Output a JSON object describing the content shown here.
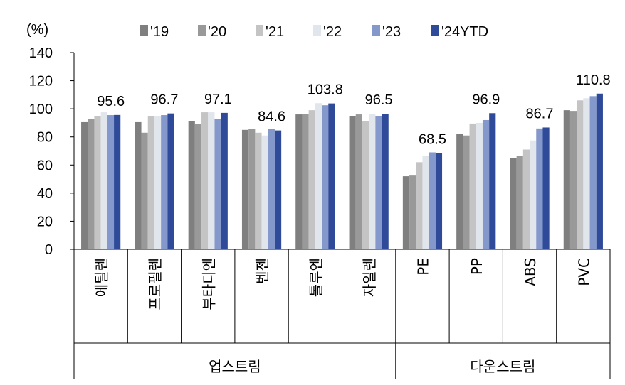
{
  "chart_data": {
    "type": "bar",
    "unit_label": "(%)",
    "ylim": [
      0,
      140
    ],
    "yticks": [
      0,
      20,
      40,
      60,
      80,
      100,
      120,
      140
    ],
    "legend_position": "top",
    "categories": [
      "에틸렌",
      "프로필렌",
      "부타디엔",
      "벤젠",
      "톨루엔",
      "자일렌",
      "PE",
      "PP",
      "ABS",
      "PVC"
    ],
    "groups": [
      {
        "label": "업스트림",
        "categories": [
          "에틸렌",
          "프로필렌",
          "부타디엔",
          "벤젠",
          "톨루엔",
          "자일렌"
        ]
      },
      {
        "label": "다운스트림",
        "categories": [
          "PE",
          "PP",
          "ABS",
          "PVC"
        ]
      }
    ],
    "series": [
      {
        "name": "'19",
        "color": "#7f7f7f",
        "values": [
          90.5,
          90.5,
          91,
          85,
          96,
          95,
          52,
          82,
          65,
          99
        ]
      },
      {
        "name": "'20",
        "color": "#999999",
        "values": [
          92.5,
          83,
          89,
          85.5,
          96.5,
          96,
          52.5,
          81,
          66.5,
          98.5
        ]
      },
      {
        "name": "'21",
        "color": "#c4c4c4",
        "values": [
          95,
          94.5,
          97.5,
          83,
          99,
          91,
          62,
          89.5,
          71,
          106
        ]
      },
      {
        "name": "'22",
        "color": "#e1e5ec",
        "values": [
          97.5,
          95,
          97.5,
          81,
          104,
          96.5,
          66.5,
          90,
          77.5,
          107.5
        ]
      },
      {
        "name": "'23",
        "color": "#8598cc",
        "values": [
          95.5,
          95.5,
          93,
          85.5,
          102.5,
          95,
          69,
          92,
          86,
          109
        ]
      },
      {
        "name": "'24YTD",
        "color": "#2e4a99",
        "values": [
          95.6,
          96.7,
          97.1,
          84.6,
          103.8,
          96.5,
          68.5,
          96.9,
          86.7,
          110.8
        ]
      }
    ],
    "data_labels": [
      "95.6",
      "96.7",
      "97.1",
      "84.6",
      "103.8",
      "96.5",
      "68.5",
      "96.9",
      "86.7",
      "110.8"
    ]
  }
}
